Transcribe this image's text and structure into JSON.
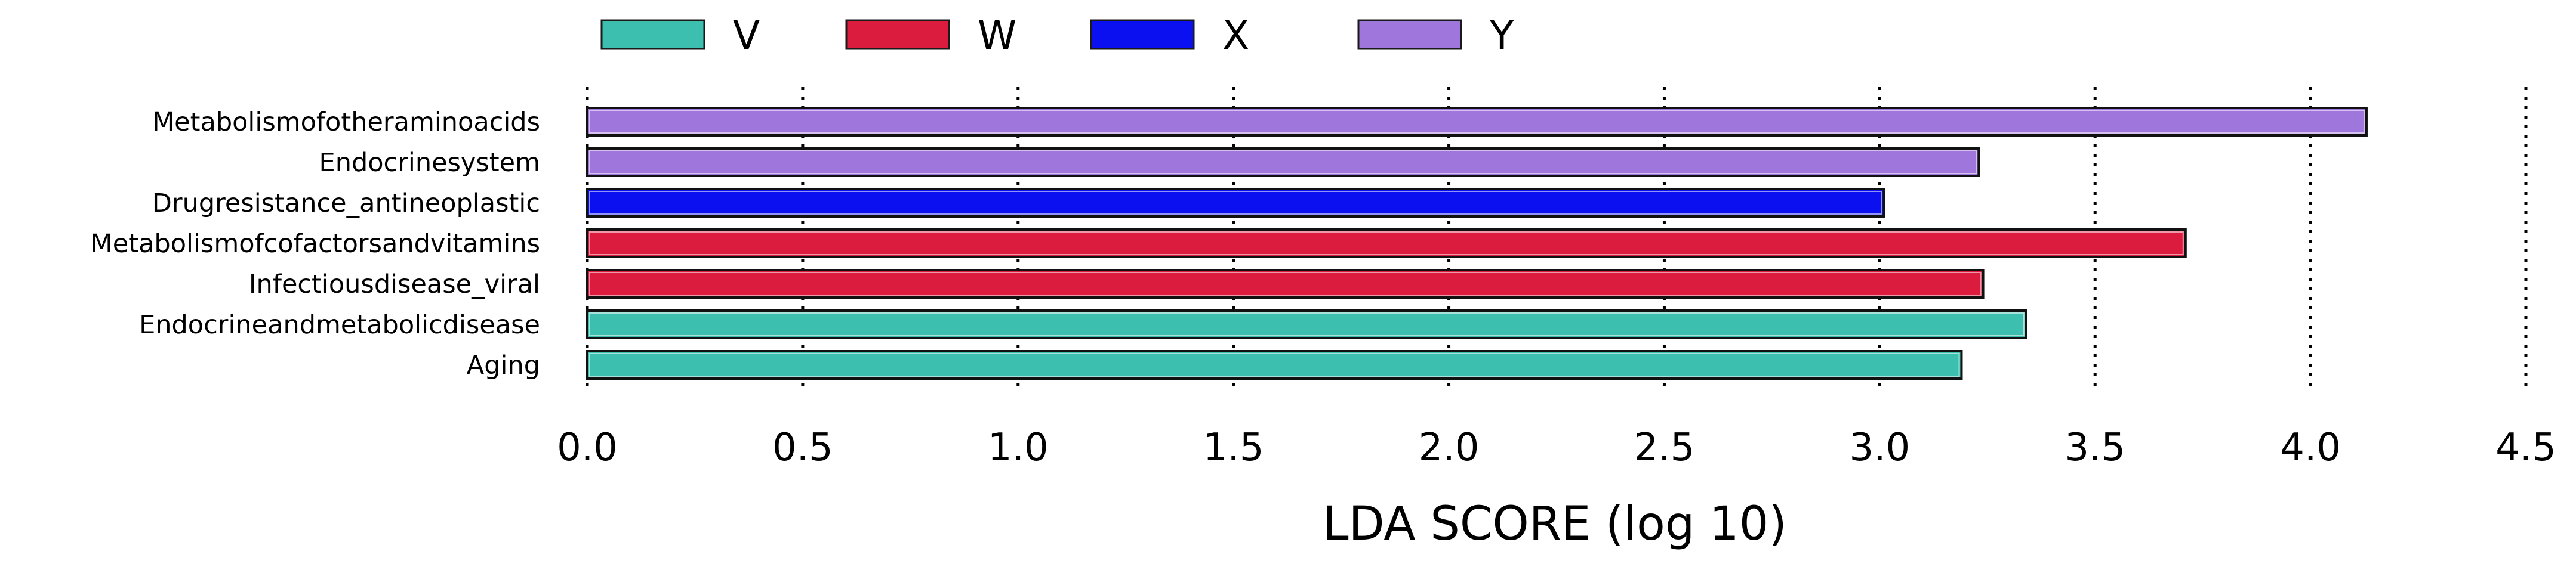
{
  "chart_data": {
    "type": "bar",
    "orientation": "horizontal",
    "xlabel": "LDA SCORE (log 10)",
    "xlim": [
      0,
      4.5
    ],
    "xticks": [
      "0.0",
      "0.5",
      "1.0",
      "1.5",
      "2.0",
      "2.5",
      "3.0",
      "3.5",
      "4.0",
      "4.5"
    ],
    "grid": "vertical dotted",
    "legend": {
      "placement": "top",
      "entries": [
        {
          "name": "V",
          "color": "#3CBFAE"
        },
        {
          "name": "W",
          "color": "#DC1C3F"
        },
        {
          "name": "X",
          "color": "#0A10F0"
        },
        {
          "name": "Y",
          "color": "#9F76DC"
        }
      ]
    },
    "bars": [
      {
        "label": "Metabolismofotheraminoacids",
        "value": 4.13,
        "group": "Y"
      },
      {
        "label": "Endocrinesystem",
        "value": 3.23,
        "group": "Y"
      },
      {
        "label": "Drugresistance_antineoplastic",
        "value": 3.01,
        "group": "X"
      },
      {
        "label": "Metabolismofcofactorsandvitamins",
        "value": 3.71,
        "group": "W"
      },
      {
        "label": "Infectiousdisease_viral",
        "value": 3.24,
        "group": "W"
      },
      {
        "label": "Endocrineandmetabolicdisease",
        "value": 3.34,
        "group": "V"
      },
      {
        "label": "Aging",
        "value": 3.19,
        "group": "V"
      }
    ]
  }
}
